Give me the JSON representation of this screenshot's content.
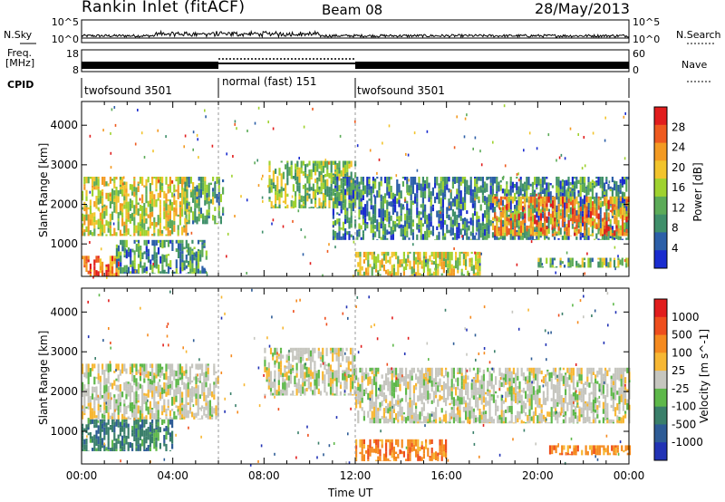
{
  "header": {
    "title": "Rankin Inlet (fitACF)",
    "beam": "Beam 08",
    "date": "28/May/2013"
  },
  "top_panel": {
    "nsky_label": "N.Sky",
    "nsearch_label": "N.Search",
    "freq_label_line1": "Freq.",
    "freq_label_line2": "[MHz]",
    "nave_label": "Nave",
    "cpid_label": "CPID",
    "left_ticks_noise": [
      "10^5",
      "10^0"
    ],
    "right_ticks_noise": [
      "10^5",
      "10^0"
    ],
    "left_ticks_freq": [
      "18",
      "8"
    ],
    "right_ticks_nave": [
      "60",
      "0"
    ]
  },
  "cpid_segments": [
    {
      "label": "twofsound 3501",
      "start": 0,
      "end": 6
    },
    {
      "label": "normal (fast) 151",
      "start": 6,
      "end": 12
    },
    {
      "label": "twofsound 3501",
      "start": 12,
      "end": 24
    }
  ],
  "colors": {
    "power_scale": [
      "#1a2ccf",
      "#2c5fa8",
      "#3f8f6a",
      "#5cab58",
      "#9fd22f",
      "#f2c42c",
      "#f39a22",
      "#ee5a1f",
      "#e11d1d"
    ],
    "velocity_scale": [
      "#2233b5",
      "#2e5c96",
      "#3a7f6a",
      "#5eb84a",
      "#c6c6bf",
      "#f7b733",
      "#f58a1f",
      "#ee4e1d",
      "#e11d1d"
    ]
  },
  "chart_data": [
    {
      "type": "heatmap",
      "name": "power",
      "xlabel": "",
      "ylabel": "Slant Range [km]",
      "xlim": [
        0,
        24
      ],
      "ylim": [
        180,
        4600
      ],
      "yticks": [
        "1000",
        "2000",
        "3000",
        "4000"
      ],
      "colorbar": {
        "label": "Power [dB]",
        "range": [
          0,
          32
        ],
        "ticks": [
          "4",
          "8",
          "12",
          "16",
          "20",
          "24",
          "28"
        ]
      },
      "regions": [
        {
          "t0": 0.0,
          "t1": 4.6,
          "r0": 1200,
          "r1": 2700,
          "level": 18
        },
        {
          "t0": 0.0,
          "t1": 1.6,
          "r0": 180,
          "r1": 700,
          "level": 26
        },
        {
          "t0": 1.5,
          "t1": 5.5,
          "r0": 250,
          "r1": 1100,
          "level": 9
        },
        {
          "t0": 4.5,
          "t1": 6.2,
          "r0": 1500,
          "r1": 2700,
          "level": 12
        },
        {
          "t0": 8.2,
          "t1": 12.0,
          "r0": 1900,
          "r1": 3100,
          "level": 14
        },
        {
          "t0": 11.0,
          "t1": 24.0,
          "r0": 1100,
          "r1": 2700,
          "level": 8
        },
        {
          "t0": 18.0,
          "t1": 24.0,
          "r0": 1200,
          "r1": 2200,
          "level": 24
        },
        {
          "t0": 12.0,
          "t1": 17.5,
          "r0": 200,
          "r1": 800,
          "level": 18
        },
        {
          "t0": 20.0,
          "t1": 24.0,
          "r0": 400,
          "r1": 650,
          "level": 12
        }
      ]
    },
    {
      "type": "heatmap",
      "name": "velocity",
      "xlabel": "Time UT",
      "ylabel": "Slant Range [km]",
      "xlim": [
        0,
        24
      ],
      "ylim": [
        180,
        4600
      ],
      "yticks": [
        "1000",
        "2000",
        "3000",
        "4000"
      ],
      "xticks": [
        "00:00",
        "04:00",
        "08:00",
        "12:00",
        "16:00",
        "20:00",
        "00:00"
      ],
      "colorbar": {
        "label": "Velocity [m s^-1]",
        "ticks": [
          "1000",
          "500",
          "100",
          "25",
          "-25",
          "-100",
          "-500",
          "-1000"
        ]
      },
      "regions": [
        {
          "t0": 0.0,
          "t1": 6.0,
          "r0": 1300,
          "r1": 2700,
          "level": 4
        },
        {
          "t0": 0.0,
          "t1": 4.0,
          "r0": 500,
          "r1": 1300,
          "level": 2
        },
        {
          "t0": 8.0,
          "t1": 12.0,
          "r0": 1900,
          "r1": 3100,
          "level": 4
        },
        {
          "t0": 12.0,
          "t1": 24.0,
          "r0": 1200,
          "r1": 2600,
          "level": 4
        },
        {
          "t0": 12.0,
          "t1": 16.0,
          "r0": 250,
          "r1": 800,
          "level": 6
        },
        {
          "t0": 20.5,
          "t1": 24.0,
          "r0": 400,
          "r1": 650,
          "level": 6
        }
      ]
    }
  ]
}
